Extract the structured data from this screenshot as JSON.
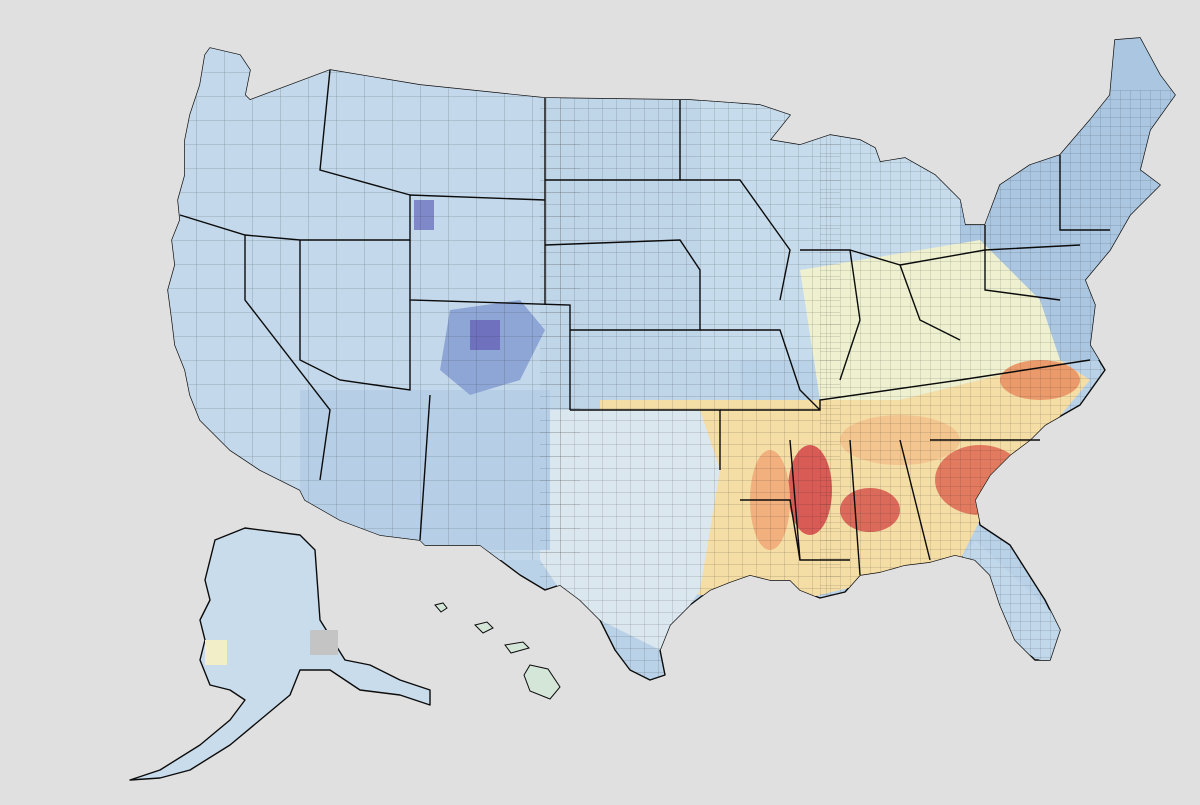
{
  "map": {
    "type": "choropleth",
    "geography": "US counties",
    "legend": "none",
    "title": "",
    "background_color": "#e0e0e0",
    "border_color": "#0b0b0b",
    "palette": [
      "#5b63c2",
      "#8fb0d8",
      "#b7d0e6",
      "#d6e6f0",
      "#eef2d2",
      "#f8dfa4",
      "#f3b880",
      "#e98a62",
      "#d4484a"
    ],
    "no_data_color": "#c8c8c8"
  }
}
